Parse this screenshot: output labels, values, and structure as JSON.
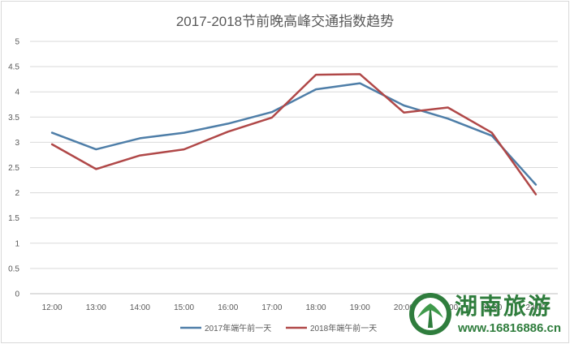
{
  "chart_data": {
    "type": "line",
    "title": "2017-2018节前晚高峰交通指数趋势",
    "xlabel": "",
    "ylabel": "",
    "categories": [
      "12:00",
      "13:00",
      "14:00",
      "15:00",
      "16:00",
      "17:00",
      "18:00",
      "19:00",
      "20:00",
      "21:00",
      "22:00",
      "23:00"
    ],
    "yticks": [
      "0",
      "0.5",
      "1",
      "1.5",
      "2",
      "2.5",
      "3",
      "3.5",
      "4",
      "4.5",
      "5"
    ],
    "ylim": [
      0,
      5
    ],
    "grid": true,
    "legend_position": "bottom",
    "series": [
      {
        "name": "2017年端午前一天",
        "color": "#4e7ea8",
        "values": [
          3.19,
          2.86,
          3.08,
          3.19,
          3.37,
          3.6,
          4.05,
          4.17,
          3.73,
          3.47,
          3.13,
          2.16
        ]
      },
      {
        "name": "2018年端午前一天",
        "color": "#b04848",
        "values": [
          2.96,
          2.47,
          2.74,
          2.86,
          3.21,
          3.49,
          4.34,
          4.35,
          3.59,
          3.69,
          3.19,
          1.97
        ]
      }
    ]
  },
  "watermark": {
    "brand_text": "湖南旅游",
    "url": "www.16816886.cn",
    "color": "#2f7d3d"
  }
}
